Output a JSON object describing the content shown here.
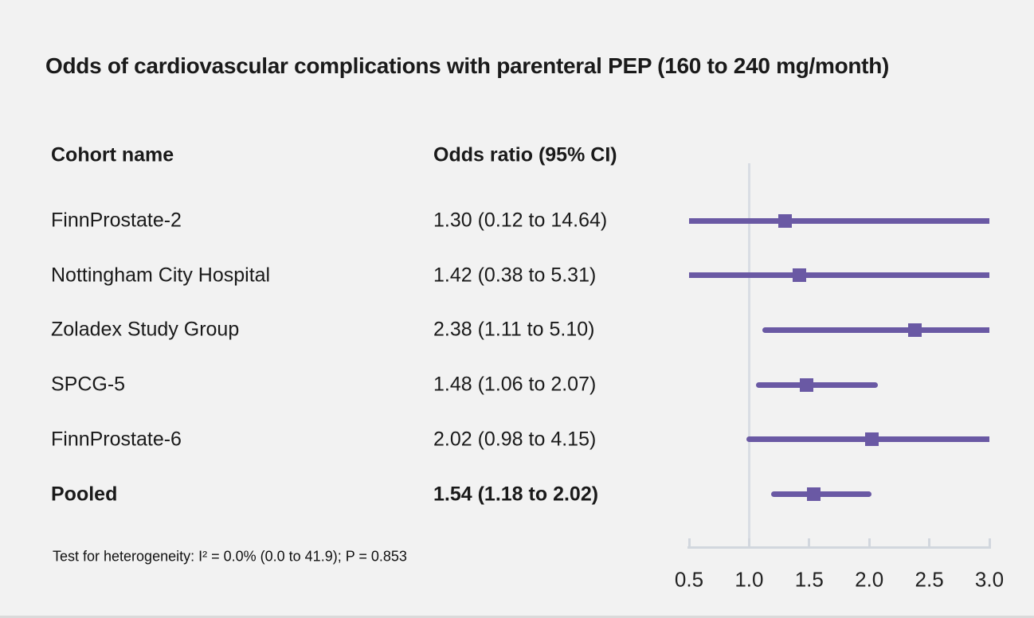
{
  "title": "Odds of cardiovascular complications with parenteral PEP (160 to 240 mg/month)",
  "table": {
    "col1_header": "Cohort name",
    "col2_header": "Odds ratio (95% CI)",
    "rows": [
      {
        "cohort": "FinnProstate-2",
        "or_text": "1.30 (0.12 to 14.64)",
        "bold": false
      },
      {
        "cohort": "Nottingham City Hospital",
        "or_text": "1.42 (0.38 to 5.31)",
        "bold": false
      },
      {
        "cohort": "Zoladex Study Group",
        "or_text": "2.38 (1.11 to 5.10)",
        "bold": false
      },
      {
        "cohort": "SPCG-5",
        "or_text": "1.48 (1.06 to 2.07)",
        "bold": false
      },
      {
        "cohort": "FinnProstate-6",
        "or_text": "2.02 (0.98 to 4.15)",
        "bold": false
      },
      {
        "cohort": "Pooled",
        "or_text": "1.54 (1.18 to 2.02)",
        "bold": true
      }
    ]
  },
  "footnote": "Test for heterogeneity: I² = 0.0% (0.0 to 41.9); P = 0.853",
  "chart_data": {
    "type": "forest",
    "title": "Odds of cardiovascular complications with parenteral PEP (160 to 240 mg/month)",
    "xlim": [
      0.5,
      3.0
    ],
    "ticks": [
      0.5,
      1.0,
      1.5,
      2.0,
      2.5,
      3.0
    ],
    "tick_labels": [
      "0.5",
      "1.0",
      "1.5",
      "2.0",
      "2.5",
      "3.0"
    ],
    "reference_line_x": 1.0,
    "clip_range": [
      0.5,
      3.0
    ],
    "series": [
      {
        "name": "FinnProstate-2",
        "or": 1.3,
        "ci_low": 0.12,
        "ci_high": 14.64,
        "pooled": false
      },
      {
        "name": "Nottingham City Hospital",
        "or": 1.42,
        "ci_low": 0.38,
        "ci_high": 5.31,
        "pooled": false
      },
      {
        "name": "Zoladex Study Group",
        "or": 2.38,
        "ci_low": 1.11,
        "ci_high": 5.1,
        "pooled": false
      },
      {
        "name": "SPCG-5",
        "or": 1.48,
        "ci_low": 1.06,
        "ci_high": 2.07,
        "pooled": false
      },
      {
        "name": "FinnProstate-6",
        "or": 2.02,
        "ci_low": 0.98,
        "ci_high": 4.15,
        "pooled": false
      },
      {
        "name": "Pooled",
        "or": 1.54,
        "ci_low": 1.18,
        "ci_high": 2.02,
        "pooled": true
      }
    ],
    "colors": {
      "marker": "#6a59a4",
      "ci_line": "#6a59a4",
      "reference_line": "#d9dde4",
      "axis": "#d2d7de",
      "background": "#f2f2f2",
      "text": "#1a1a1a"
    }
  }
}
